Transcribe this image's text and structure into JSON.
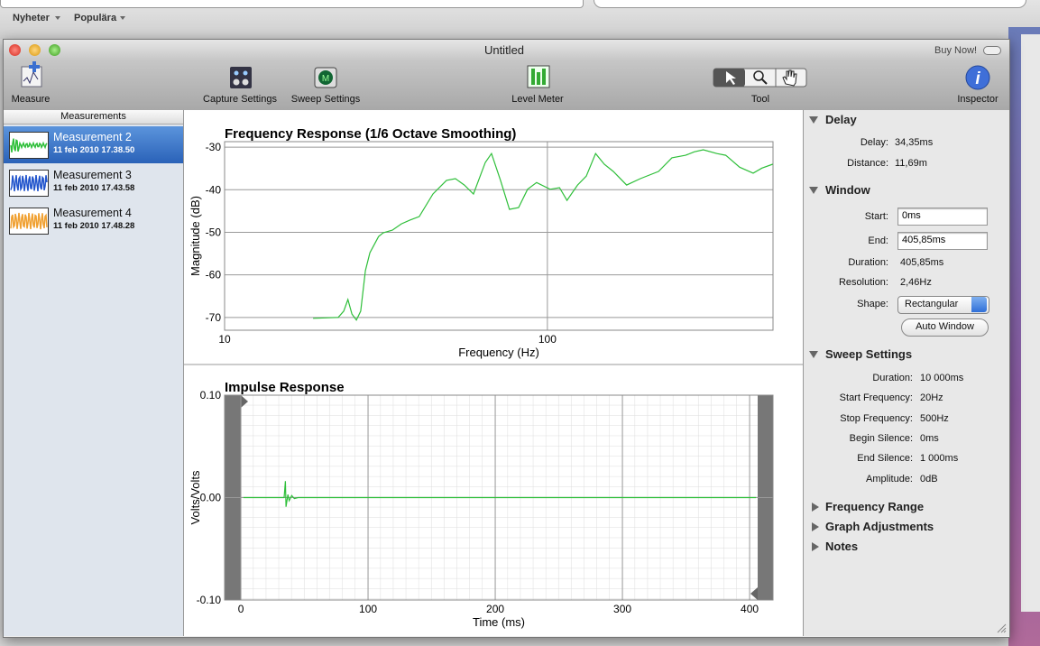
{
  "browser": {
    "bookmarks": [
      "Nyheter",
      "Populära"
    ]
  },
  "window": {
    "title": "Untitled",
    "buy_now": "Buy Now!"
  },
  "toolbar": [
    "Measure",
    "Capture Settings",
    "Sweep Settings",
    "Level Meter",
    "Tool",
    "Inspector"
  ],
  "sidebar": {
    "header": "Measurements",
    "items": [
      {
        "name": "Measurement 2",
        "date": "11 feb 2010 17.38.50",
        "color": "#2fbf3a",
        "selected": true
      },
      {
        "name": "Measurement 3",
        "date": "11 feb 2010 17.43.58",
        "color": "#2255cc",
        "selected": false
      },
      {
        "name": "Measurement 4",
        "date": "11 feb 2010 17.48.28",
        "color": "#f0a030",
        "selected": false
      }
    ]
  },
  "chart_data": [
    {
      "type": "line",
      "title": "Frequency Response (1/6 Octave Smoothing)",
      "x_label": "Frequency (Hz)",
      "y_label": "Magnitude (dB)",
      "xscale": "log",
      "xlim": [
        10,
        500
      ],
      "ylim": [
        -73,
        -28.7
      ],
      "xticks": [
        10,
        100
      ],
      "yticks": [
        -30,
        -40,
        -50,
        -60,
        -70
      ],
      "grid": true,
      "color": "#2fbf3a",
      "x": [
        18.8,
        22.5,
        23.4,
        24.1,
        24.8,
        25.6,
        26.4,
        27.3,
        28.2,
        30.0,
        31.0,
        33.1,
        35.3,
        37.6,
        40.1,
        44.2,
        48.7,
        51.9,
        55.3,
        59.0,
        64.2,
        67.1,
        71.6,
        76.3,
        81.4,
        86.8,
        92.6,
        102,
        109,
        115,
        124,
        132,
        141,
        150,
        160,
        176,
        194,
        221,
        243,
        268,
        285,
        304,
        335,
        357,
        394,
        434,
        462,
        499
      ],
      "values": [
        -70.2,
        -70.0,
        -68.5,
        -65.8,
        -69.2,
        -70.6,
        -68.5,
        -59.0,
        -54.8,
        -51.0,
        -50.1,
        -49.5,
        -48.0,
        -47.1,
        -46.3,
        -41.0,
        -37.8,
        -37.4,
        -38.9,
        -41.0,
        -33.6,
        -31.5,
        -37.8,
        -44.6,
        -44.2,
        -39.9,
        -38.3,
        -39.9,
        -39.5,
        -42.5,
        -38.9,
        -36.8,
        -31.5,
        -34.0,
        -35.7,
        -38.9,
        -37.4,
        -35.7,
        -32.5,
        -31.9,
        -31.1,
        -30.6,
        -31.5,
        -31.9,
        -34.7,
        -36.1,
        -34.9,
        -34.0
      ]
    },
    {
      "type": "line",
      "title": "Impulse Response",
      "x_label": "Time (ms)",
      "y_label": "Volts/Volts",
      "xscale": "linear",
      "xlim": [
        -12.8,
        418.4
      ],
      "ylim": [
        -0.1,
        0.1
      ],
      "xticks": [
        0,
        100,
        200,
        300,
        400
      ],
      "yticks": [
        {
          "value": 0.1,
          "label": "0.10"
        },
        {
          "value": 0,
          "label": "0.00"
        },
        {
          "value": -0.1,
          "label": "-0.10"
        }
      ],
      "grid": true,
      "color": "#2fbf3a",
      "x": [
        2,
        34,
        35,
        35.5,
        37,
        38,
        40,
        42,
        45,
        405
      ],
      "values": [
        0,
        0,
        0.016,
        -0.009,
        0.003,
        -0.003,
        0.002,
        -0.001,
        0,
        0
      ]
    }
  ],
  "inspector": {
    "delay": {
      "title": "Delay",
      "rows": [
        [
          "Delay:",
          "34,35ms"
        ],
        [
          "Distance:",
          "11,69m"
        ]
      ]
    },
    "window": {
      "title": "Window",
      "start_label": "Start:",
      "start": "0ms",
      "end_label": "End:",
      "end": "405,85ms",
      "rows": [
        [
          "Duration:",
          "405,85ms"
        ],
        [
          "Resolution:",
          "2,46Hz"
        ]
      ],
      "shape_label": "Shape:",
      "shape": "Rectangular",
      "button": "Auto Window"
    },
    "sweep": {
      "title": "Sweep Settings",
      "rows": [
        [
          "Duration:",
          "10 000ms"
        ],
        [
          "Start Frequency:",
          "20Hz"
        ],
        [
          "Stop Frequency:",
          "500Hz"
        ],
        [
          "Begin Silence:",
          "0ms"
        ],
        [
          "End Silence:",
          "1 000ms"
        ],
        [
          "Amplitude:",
          "0dB"
        ]
      ]
    },
    "collapsed": [
      "Frequency Range",
      "Graph Adjustments",
      "Notes"
    ]
  }
}
